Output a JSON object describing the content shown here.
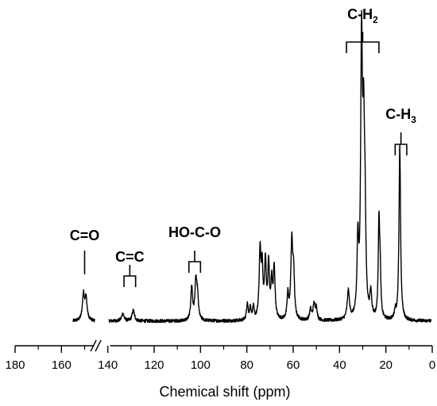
{
  "chart_data": {
    "type": "line",
    "title": "",
    "xlabel": "Chemical shift (ppm)",
    "ylabel": "",
    "xlim": [
      180,
      0
    ],
    "x_reversed": true,
    "axis_break": [
      145,
      140
    ],
    "grid": false,
    "xticks": [
      180,
      160,
      140,
      120,
      100,
      80,
      60,
      40,
      20,
      0
    ],
    "series": [
      {
        "values_description_free": true,
        "peaks": [
          {
            "ppm": 150.5,
            "height": 0.095,
            "width": 0.55
          },
          {
            "ppm": 149.4,
            "height": 0.08,
            "width": 0.55
          },
          {
            "ppm": 133.5,
            "height": 0.028,
            "width": 0.6
          },
          {
            "ppm": 129.0,
            "height": 0.04,
            "width": 0.6
          },
          {
            "ppm": 103.8,
            "height": 0.125,
            "width": 0.45
          },
          {
            "ppm": 102.0,
            "height": 0.14,
            "width": 0.5
          },
          {
            "ppm": 101.3,
            "height": 0.08,
            "width": 0.45
          },
          {
            "ppm": 79.8,
            "height": 0.06,
            "width": 0.4
          },
          {
            "ppm": 78.5,
            "height": 0.045,
            "width": 0.4
          },
          {
            "ppm": 77.2,
            "height": 0.045,
            "width": 0.4
          },
          {
            "ppm": 74.3,
            "height": 0.25,
            "width": 0.45
          },
          {
            "ppm": 73.4,
            "height": 0.18,
            "width": 0.4
          },
          {
            "ppm": 72.0,
            "height": 0.21,
            "width": 0.45
          },
          {
            "ppm": 70.6,
            "height": 0.2,
            "width": 0.4
          },
          {
            "ppm": 69.3,
            "height": 0.13,
            "width": 0.4
          },
          {
            "ppm": 68.2,
            "height": 0.19,
            "width": 0.45
          },
          {
            "ppm": 62.3,
            "height": 0.09,
            "width": 0.4
          },
          {
            "ppm": 60.6,
            "height": 0.29,
            "width": 0.5
          },
          {
            "ppm": 59.8,
            "height": 0.15,
            "width": 0.4
          },
          {
            "ppm": 52.5,
            "height": 0.04,
            "width": 0.5
          },
          {
            "ppm": 51.0,
            "height": 0.06,
            "width": 0.5
          },
          {
            "ppm": 50.0,
            "height": 0.045,
            "width": 0.4
          },
          {
            "ppm": 36.2,
            "height": 0.105,
            "width": 0.55
          },
          {
            "ppm": 32.1,
            "height": 0.27,
            "width": 0.4
          },
          {
            "ppm": 30.5,
            "height": 1.0,
            "width": 0.45
          },
          {
            "ppm": 29.6,
            "height": 0.6,
            "width": 0.45
          },
          {
            "ppm": 29.0,
            "height": 0.3,
            "width": 0.4
          },
          {
            "ppm": 26.5,
            "height": 0.09,
            "width": 0.45
          },
          {
            "ppm": 23.0,
            "height": 0.35,
            "width": 0.35
          },
          {
            "ppm": 22.5,
            "height": 0.16,
            "width": 0.35
          },
          {
            "ppm": 16.0,
            "height": 0.03,
            "width": 0.4
          },
          {
            "ppm": 14.0,
            "height": 0.65,
            "width": 0.4
          }
        ]
      }
    ],
    "annotations": [
      {
        "text": "C=O",
        "ppm_range": [
          150,
          150
        ]
      },
      {
        "text": "C=C",
        "ppm_range": [
          133,
          128
        ]
      },
      {
        "text": "HO-C-O",
        "ppm_range": [
          105,
          100
        ]
      },
      {
        "text": "C-H",
        "subscript": "2",
        "ppm_range": [
          37,
          23
        ]
      },
      {
        "text": "C-H",
        "subscript": "3",
        "ppm_range": [
          16,
          11
        ]
      }
    ]
  }
}
